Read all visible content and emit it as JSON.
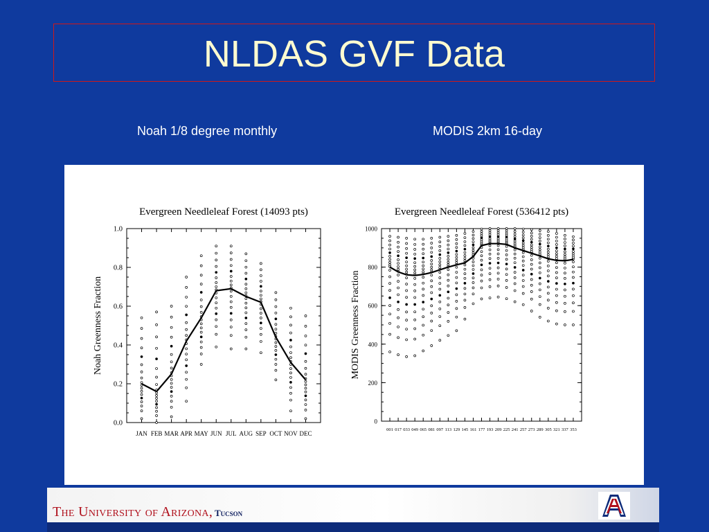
{
  "slide": {
    "title": "NLDAS GVF Data",
    "subtitle_left": "Noah 1/8 degree monthly",
    "subtitle_right": "MODIS 2km 16-day"
  },
  "footer": {
    "university": "The University of Arizona,",
    "campus": "Tucson",
    "logo_letter": "A"
  },
  "colors": {
    "background": "#0f3a9e",
    "title_text": "#fffbd0",
    "title_border": "#d01818",
    "footer_text": "#b0101c"
  },
  "chart_data": [
    {
      "type": "line",
      "title": "Evergreen Needleleaf Forest (14093 pts)",
      "xlabel": "",
      "ylabel": "Noah Greenness Fraction",
      "categories": [
        "JAN",
        "FEB",
        "MAR",
        "APR",
        "MAY",
        "JUN",
        "JUL",
        "AUG",
        "SEP",
        "OCT",
        "NOV",
        "DEC"
      ],
      "ylim": [
        0.0,
        1.0
      ],
      "yticks": [
        "0.0",
        "0.2",
        "0.4",
        "0.6",
        "0.8",
        "1.0"
      ],
      "series": [
        {
          "values": [
            0.2,
            0.16,
            0.25,
            0.42,
            0.54,
            0.68,
            0.69,
            0.65,
            0.62,
            0.44,
            0.31,
            0.22
          ]
        }
      ],
      "scatter_percentiles": {
        "low": [
          0.02,
          0.0,
          0.03,
          0.11,
          0.3,
          0.39,
          0.38,
          0.38,
          0.36,
          0.22,
          0.06,
          0.02
        ],
        "high": [
          0.54,
          0.57,
          0.6,
          0.75,
          0.86,
          0.91,
          0.91,
          0.87,
          0.82,
          0.67,
          0.59,
          0.55
        ]
      }
    },
    {
      "type": "line",
      "title": "Evergreen Needleleaf Forest (536412 pts)",
      "xlabel": "",
      "ylabel": "MODIS Greenness Fraction",
      "categories": [
        "001",
        "017",
        "033",
        "049",
        "065",
        "081",
        "097",
        "113",
        "129",
        "145",
        "161",
        "177",
        "193",
        "209",
        "225",
        "241",
        "257",
        "273",
        "289",
        "305",
        "321",
        "337",
        "353"
      ],
      "ylim": [
        0,
        1000
      ],
      "yticks": [
        "0",
        "200",
        "400",
        "600",
        "800",
        "1000"
      ],
      "series": [
        {
          "values": [
            800,
            775,
            760,
            757,
            762,
            772,
            786,
            800,
            812,
            822,
            855,
            912,
            922,
            922,
            918,
            900,
            886,
            872,
            858,
            843,
            835,
            833,
            840
          ]
        }
      ],
      "scatter_percentiles": {
        "low": [
          360,
          345,
          335,
          340,
          365,
          392,
          420,
          445,
          470,
          530,
          610,
          635,
          640,
          645,
          636,
          620,
          605,
          572,
          540,
          520,
          505,
          500,
          500
        ],
        "high": [
          960,
          955,
          950,
          945,
          945,
          950,
          955,
          960,
          965,
          975,
          985,
          998,
          1000,
          1000,
          1000,
          1000,
          998,
          995,
          990,
          985,
          975,
          965,
          958
        ]
      }
    }
  ]
}
